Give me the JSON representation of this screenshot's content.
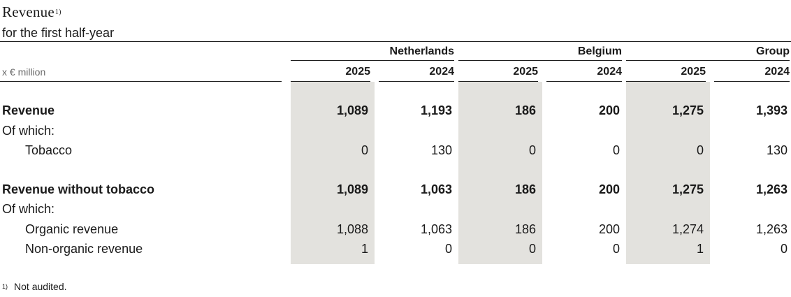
{
  "title": "Revenue",
  "title_footnote_marker": "1)",
  "subtitle": "for the first half-year",
  "unit_label": "x € million",
  "column_groups": [
    "Netherlands",
    "Belgium",
    "Group"
  ],
  "years": [
    "2025",
    "2024",
    "2025",
    "2024",
    "2025",
    "2024"
  ],
  "rows": [
    {
      "label": "Revenue",
      "bold": true,
      "values": [
        "1,089",
        "1,193",
        "186",
        "200",
        "1,275",
        "1,393"
      ]
    },
    {
      "label": "Of which:",
      "bold": false,
      "values": []
    },
    {
      "label": "Tobacco",
      "bold": false,
      "indent": true,
      "values": [
        "0",
        "130",
        "0",
        "0",
        "0",
        "130"
      ]
    },
    {
      "label": "Revenue without tobacco",
      "bold": true,
      "values": [
        "1,089",
        "1,063",
        "186",
        "200",
        "1,275",
        "1,263"
      ]
    },
    {
      "label": "Of which:",
      "bold": false,
      "values": []
    },
    {
      "label": "Organic revenue",
      "bold": false,
      "indent": true,
      "values": [
        "1,088",
        "1,063",
        "186",
        "200",
        "1,274",
        "1,263"
      ]
    },
    {
      "label": "Non-organic revenue",
      "bold": false,
      "indent": true,
      "values": [
        "1",
        "0",
        "0",
        "0",
        "1",
        "0"
      ]
    }
  ],
  "footnote": {
    "marker": "1)",
    "text": "Not audited."
  },
  "colors": {
    "shade": "#e3e2de",
    "text": "#1a1a1a",
    "unit_text": "#6a6a6a"
  }
}
